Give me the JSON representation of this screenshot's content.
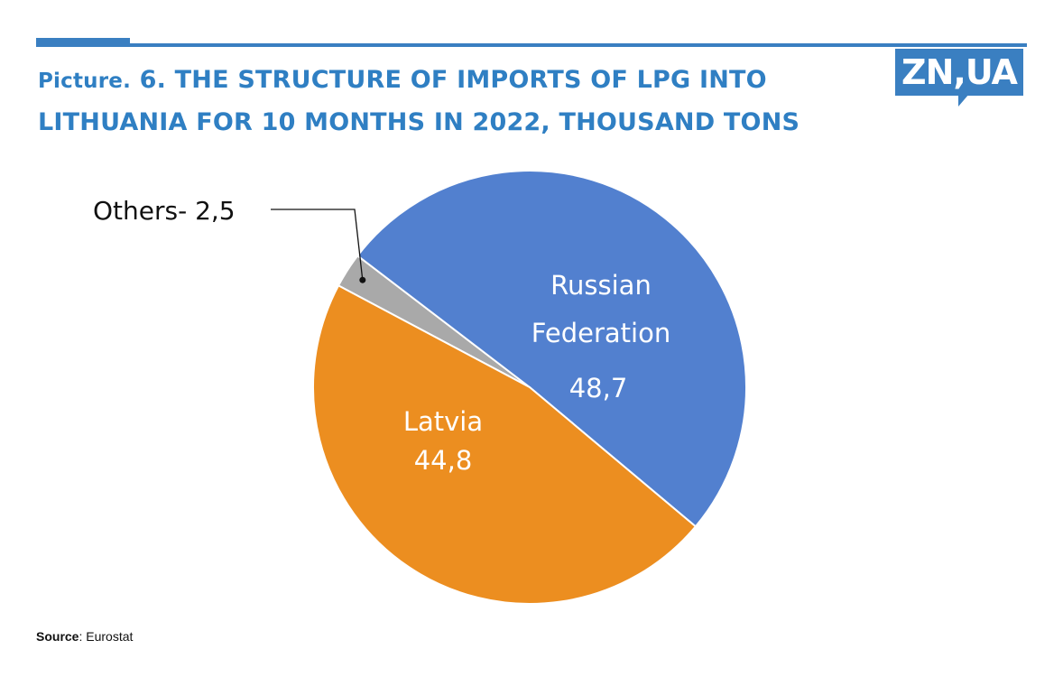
{
  "header": {
    "title_prefix": "Picture.",
    "title_main": " 6. THE STRUCTURE OF IMPORTS OF LPG INTO LITHUANIA FOR 10 MONTHS IN 2022, THOUSAND TONS"
  },
  "logo": {
    "text": "ZN,UA",
    "color": "#3a7fc1"
  },
  "chart_data": {
    "type": "pie",
    "title": "Picture. 6. THE STRUCTURE OF IMPORTS OF LPG INTO LITHUANIA FOR 10 MONTHS IN 2022, THOUSAND TONS",
    "unit": "thousand tons",
    "slices": [
      {
        "label": "Russian Federation",
        "label_lines": [
          "Russian",
          "Federation"
        ],
        "value": 48.7,
        "value_text": "48,7",
        "color": "#5280cf"
      },
      {
        "label": "Latvia",
        "label_lines": [
          "Latvia"
        ],
        "value": 44.8,
        "value_text": "44,8",
        "color": "#ec8e20"
      },
      {
        "label": "Others",
        "label_lines": [
          "Others- 2,5"
        ],
        "value": 2.5,
        "value_text": "2,5",
        "color": "#a9a9a9"
      }
    ]
  },
  "footer": {
    "source_label": "Source",
    "source_text": ": Eurostat"
  }
}
